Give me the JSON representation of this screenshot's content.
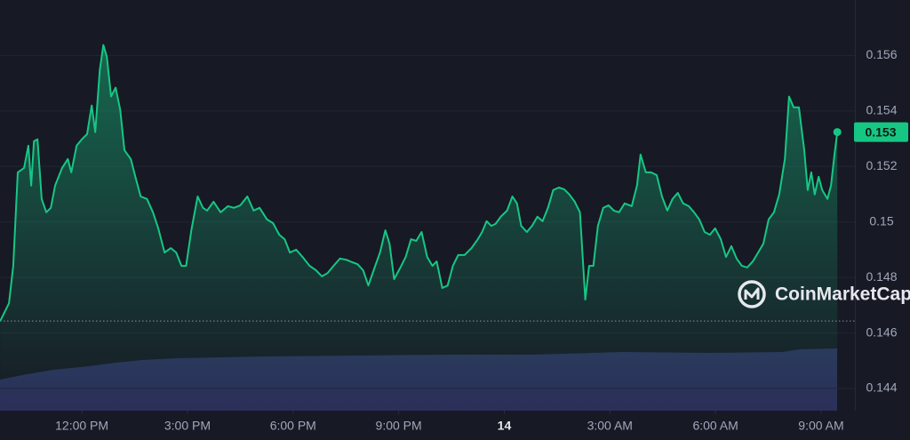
{
  "chart_data": {
    "type": "line",
    "watermark": "CoinMarketCap",
    "x": [
      9.68,
      9.93,
      10.05,
      10.18,
      10.36,
      10.48,
      10.56,
      10.64,
      10.74,
      10.86,
      10.99,
      11.12,
      11.24,
      11.44,
      11.6,
      11.7,
      11.85,
      12.0,
      12.15,
      12.28,
      12.38,
      12.51,
      12.61,
      12.71,
      12.83,
      12.96,
      13.09,
      13.21,
      13.39,
      13.52,
      13.67,
      13.85,
      14.02,
      14.17,
      14.35,
      14.53,
      14.68,
      14.83,
      14.96,
      15.11,
      15.29,
      15.44,
      15.56,
      15.74,
      15.94,
      16.15,
      16.32,
      16.5,
      16.7,
      16.88,
      17.05,
      17.26,
      17.43,
      17.61,
      17.76,
      17.91,
      18.09,
      18.27,
      18.47,
      18.65,
      18.82,
      18.98,
      19.15,
      19.33,
      19.51,
      19.68,
      19.83,
      19.99,
      20.14,
      20.29,
      20.47,
      20.62,
      20.74,
      20.87,
      21.05,
      21.2,
      21.35,
      21.5,
      21.65,
      21.81,
      21.96,
      22.08,
      22.24,
      22.39,
      22.54,
      22.69,
      22.87,
      23.07,
      23.25,
      23.37,
      23.5,
      23.63,
      23.75,
      23.9,
      24.08,
      24.23,
      24.36,
      24.48,
      24.64,
      24.79,
      24.94,
      25.09,
      25.24,
      25.39,
      25.55,
      25.7,
      25.85,
      26.0,
      26.15,
      26.3,
      26.41,
      26.53,
      26.66,
      26.81,
      26.96,
      27.11,
      27.26,
      27.42,
      27.62,
      27.77,
      27.87,
      28.02,
      28.17,
      28.33,
      28.48,
      28.63,
      28.78,
      28.93,
      29.08,
      29.24,
      29.39,
      29.54,
      29.69,
      29.84,
      29.99,
      30.15,
      30.3,
      30.45,
      30.6,
      30.75,
      30.9,
      31.06,
      31.21,
      31.36,
      31.51,
      31.66,
      31.81,
      31.97,
      32.09,
      32.22,
      32.37,
      32.52,
      32.62,
      32.72,
      32.82,
      32.93,
      33.03,
      33.18,
      33.28,
      33.38,
      33.46
    ],
    "series": [
      {
        "color": "#16c784",
        "values": [
          0.14643,
          0.14707,
          0.14842,
          0.15179,
          0.15195,
          0.15275,
          0.15131,
          0.15291,
          0.15298,
          0.15083,
          0.15035,
          0.15051,
          0.15131,
          0.15195,
          0.15227,
          0.15179,
          0.15275,
          0.15298,
          0.15317,
          0.1542,
          0.15324,
          0.15548,
          0.15638,
          0.15596,
          0.15452,
          0.15484,
          0.15404,
          0.15259,
          0.15227,
          0.15163,
          0.15092,
          0.15083,
          0.15035,
          0.14977,
          0.1489,
          0.14906,
          0.1489,
          0.14842,
          0.14842,
          0.1497,
          0.15092,
          0.15051,
          0.15041,
          0.15073,
          0.15035,
          0.15057,
          0.15051,
          0.1506,
          0.15092,
          0.15041,
          0.15051,
          0.15009,
          0.14996,
          0.14954,
          0.14938,
          0.1489,
          0.149,
          0.14874,
          0.14842,
          0.14826,
          0.14804,
          0.14816,
          0.14842,
          0.14868,
          0.14864,
          0.14855,
          0.14848,
          0.14826,
          0.14771,
          0.14826,
          0.1489,
          0.1497,
          0.14922,
          0.14794,
          0.14836,
          0.14874,
          0.14938,
          0.14932,
          0.14964,
          0.14874,
          0.14842,
          0.14858,
          0.14762,
          0.14771,
          0.14842,
          0.14881,
          0.14881,
          0.14906,
          0.14938,
          0.14964,
          0.15003,
          0.14986,
          0.14993,
          0.15019,
          0.15041,
          0.15092,
          0.15067,
          0.14986,
          0.14964,
          0.14986,
          0.15019,
          0.15003,
          0.15051,
          0.15115,
          0.15124,
          0.15118,
          0.15099,
          0.15073,
          0.15035,
          0.1472,
          0.14842,
          0.14842,
          0.14986,
          0.15051,
          0.1506,
          0.15041,
          0.15035,
          0.15067,
          0.15057,
          0.15131,
          0.15243,
          0.15179,
          0.15179,
          0.15169,
          0.15092,
          0.15041,
          0.15083,
          0.15105,
          0.15067,
          0.15057,
          0.15035,
          0.15009,
          0.14964,
          0.14954,
          0.14977,
          0.14938,
          0.14874,
          0.14913,
          0.14868,
          0.14842,
          0.14836,
          0.14858,
          0.1489,
          0.14922,
          0.15009,
          0.15035,
          0.15099,
          0.15227,
          0.15452,
          0.15413,
          0.15413,
          0.15259,
          0.15115,
          0.15179,
          0.15099,
          0.15163,
          0.15115,
          0.15083,
          0.15131,
          0.15243,
          0.15324
        ]
      }
    ],
    "price_tag": {
      "value": 0.15324,
      "label": "0.153"
    },
    "xlim": [
      9.675,
      33.96
    ],
    "xticks": [
      {
        "value": 12,
        "label": "12:00 PM"
      },
      {
        "value": 15,
        "label": "3:00 PM"
      },
      {
        "value": 18,
        "label": "6:00 PM"
      },
      {
        "value": 21,
        "label": "9:00 PM"
      },
      {
        "value": 24,
        "label": "14"
      },
      {
        "value": 27,
        "label": "3:00 AM"
      },
      {
        "value": 30,
        "label": "6:00 AM"
      },
      {
        "value": 33,
        "label": "9:00 AM"
      }
    ],
    "ylim": [
      0.1432,
      0.158
    ],
    "yticks": [
      0.144,
      0.146,
      0.148,
      0.15,
      0.152,
      0.154,
      0.156
    ],
    "grid": true
  }
}
